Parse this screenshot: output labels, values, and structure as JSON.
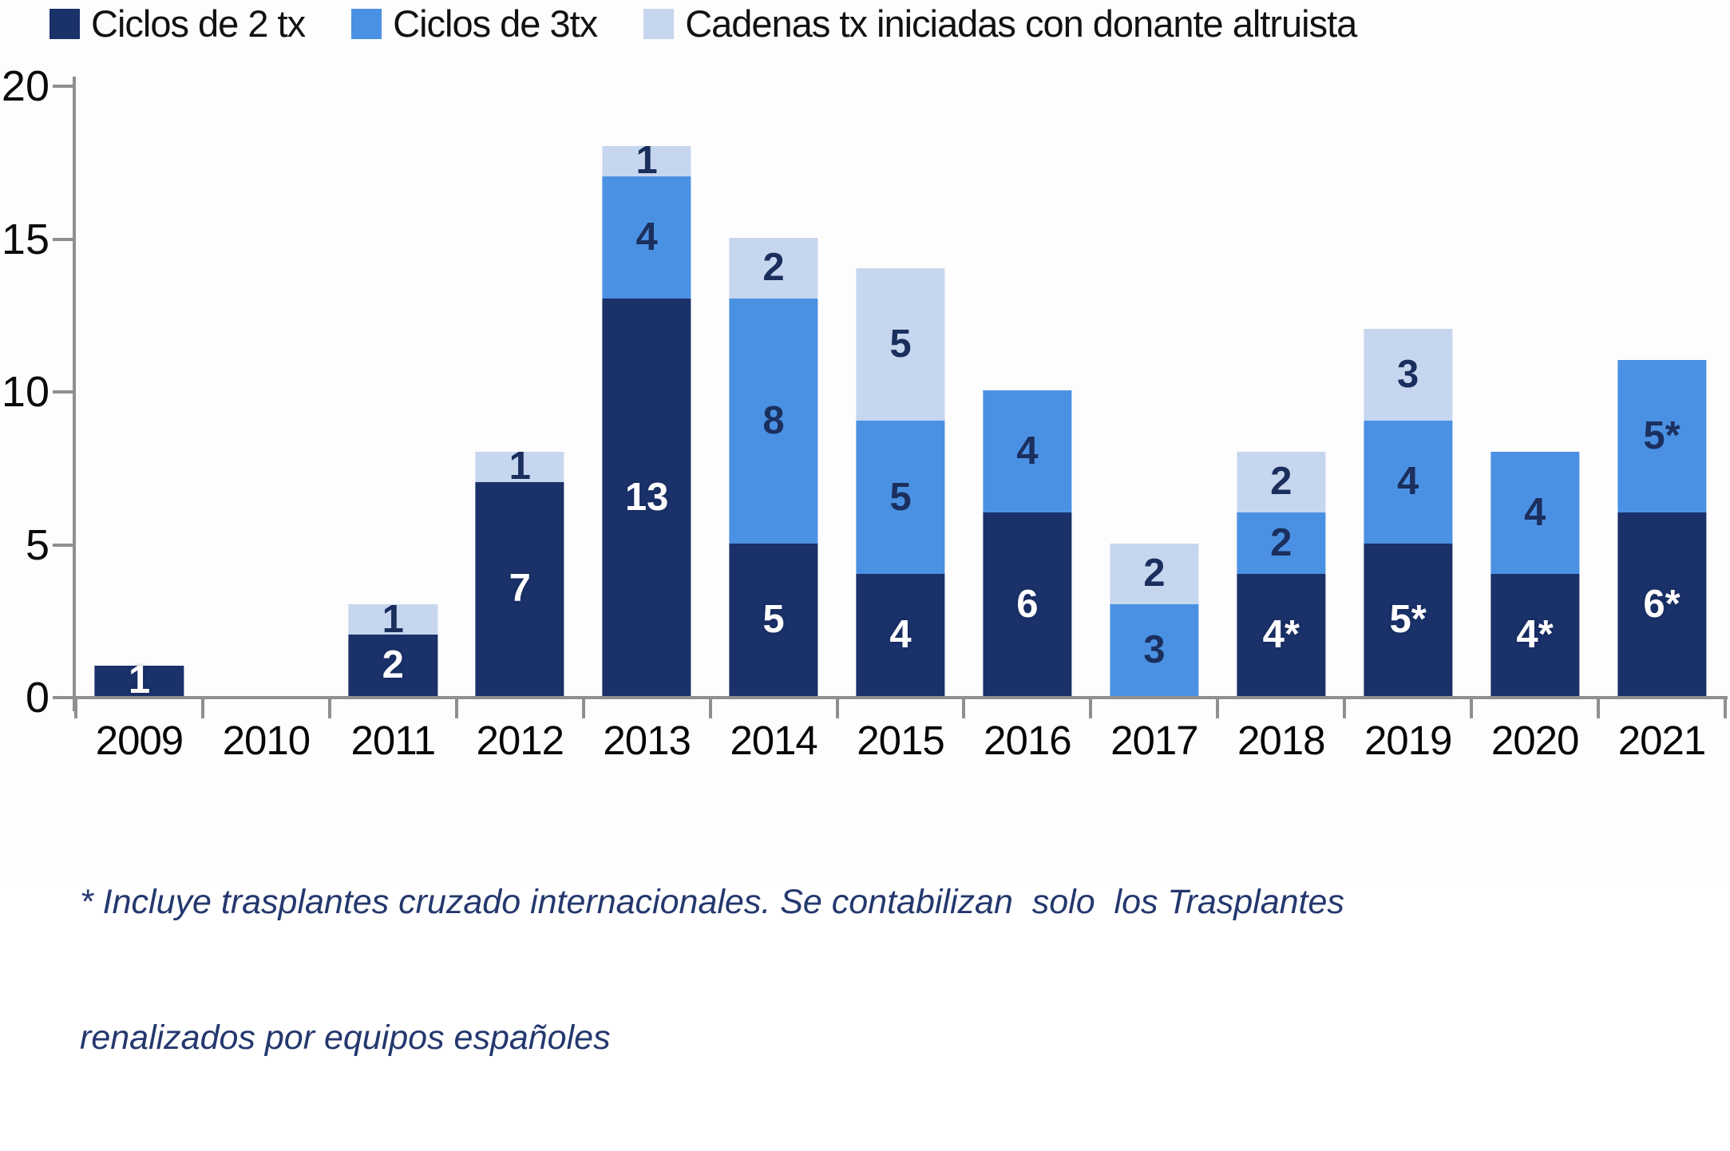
{
  "legend": {
    "items": [
      {
        "label": "Ciclos de 2 tx",
        "color": "#1A3169"
      },
      {
        "label": "Ciclos de 3tx",
        "color": "#4B91E3"
      },
      {
        "label": "Cadenas tx iniciadas con donante altruista",
        "color": "#C7D6EF"
      }
    ]
  },
  "y_axis": {
    "ticks": [
      0,
      5,
      10,
      15,
      20
    ],
    "max": 20
  },
  "footnote": {
    "line1": "* Incluye trasplantes cruzado internacionales. Se contabilizan  solo  los Trasplantes",
    "line2": "renalizados por equipos españoles"
  },
  "chart_data": {
    "type": "bar",
    "stacked": true,
    "title": "",
    "xlabel": "",
    "ylabel": "",
    "ylim": [
      0,
      20
    ],
    "yticks": [
      0,
      5,
      10,
      15,
      20
    ],
    "grid": false,
    "legend_position": "top-left",
    "categories": [
      "2009",
      "2010",
      "2011",
      "2012",
      "2013",
      "2014",
      "2015",
      "2016",
      "2017",
      "2018",
      "2019",
      "2020",
      "2021"
    ],
    "series": [
      {
        "name": "Ciclos de 2 tx",
        "color": "#1A3169",
        "label_color": "white",
        "values": [
          1,
          0,
          2,
          7,
          13,
          5,
          4,
          6,
          0,
          4,
          5,
          4,
          6
        ],
        "labels": [
          "1",
          "",
          "2",
          "7",
          "13",
          "5",
          "4",
          "6",
          "",
          "4*",
          "5*",
          "4*",
          "6*"
        ]
      },
      {
        "name": "Ciclos de 3tx",
        "color": "#4B91E3",
        "label_color": "dark",
        "values": [
          0,
          0,
          0,
          0,
          4,
          8,
          5,
          4,
          3,
          2,
          4,
          4,
          5
        ],
        "labels": [
          "",
          "",
          "",
          "",
          "4",
          "8",
          "5",
          "4",
          "3",
          "2",
          "4",
          "4",
          "5*"
        ]
      },
      {
        "name": "Cadenas tx iniciadas con donante altruista",
        "color": "#C7D6EF",
        "label_color": "dark",
        "values": [
          0,
          0,
          1,
          1,
          1,
          2,
          5,
          0,
          2,
          2,
          3,
          0,
          0
        ],
        "labels": [
          "",
          "",
          "1",
          "1",
          "1",
          "2",
          "5",
          "",
          "2",
          "2",
          "3",
          "",
          ""
        ]
      }
    ],
    "totals": [
      1,
      0,
      3,
      8,
      18,
      15,
      14,
      10,
      5,
      8,
      12,
      8,
      11
    ],
    "footnote": "* Incluye trasplantes cruzado internacionales. Se contabilizan solo los Trasplantes renalizados por equipos españoles"
  }
}
